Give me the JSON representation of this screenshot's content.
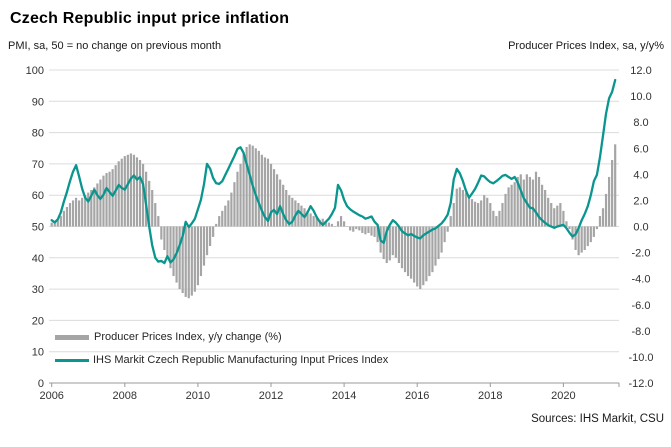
{
  "header": {
    "title": "Czech Republic input price inflation",
    "subtitle_left": "PMI, sa, 50 = no change on previous month",
    "subtitle_right": "Producer Prices Index, sa, y/y%"
  },
  "footer": {
    "sources": "Sources: IHS Markit, CSU"
  },
  "colors": {
    "bar": "#a5a5a5",
    "line": "#0a968e",
    "gridline": "#dcdcdc",
    "axis": "#999999",
    "tick_text": "#333333"
  },
  "chart_data": {
    "type": "combo",
    "title": "Czech Republic input price inflation",
    "x_start_year": 2006,
    "x_frequency": "monthly",
    "x_tick_labels": [
      "2006",
      "2008",
      "2010",
      "2012",
      "2014",
      "2016",
      "2018",
      "2020"
    ],
    "x_tick_years": [
      2006,
      2008,
      2010,
      2012,
      2014,
      2016,
      2018,
      2020
    ],
    "left_axis": {
      "title": "PMI, sa, 50 = no change on previous month",
      "min": 0,
      "max": 100,
      "step": 10,
      "labels": [
        "100",
        "90",
        "80",
        "70",
        "60",
        "50",
        "40",
        "30",
        "20",
        "10",
        "0"
      ]
    },
    "right_axis": {
      "title": "Producer Prices Index, sa, y/y%",
      "min": -12,
      "max": 12,
      "step": 2,
      "labels": [
        "12.0",
        "10.0",
        "8.0",
        "6.0",
        "4.0",
        "2.0",
        "0.0",
        "-2.0",
        "-4.0",
        "-6.0",
        "-8.0",
        "-10.0",
        "-12.0"
      ]
    },
    "grid": "horizontal",
    "legend_position": "inside-bottom-left",
    "series": [
      {
        "name": "Producer Prices Index, y/y change (%)",
        "type": "bar",
        "axis": "right",
        "color": "#a5a5a5",
        "values": [
          0.3,
          0.4,
          0.5,
          0.8,
          1.2,
          1.5,
          1.8,
          2.0,
          2.2,
          2.0,
          2.2,
          2.4,
          2.6,
          2.8,
          3.0,
          3.3,
          3.6,
          3.9,
          4.1,
          4.2,
          4.4,
          4.7,
          5.0,
          5.2,
          5.4,
          5.5,
          5.6,
          5.5,
          5.3,
          5.1,
          4.8,
          4.2,
          3.5,
          2.8,
          1.8,
          0.8,
          -1.0,
          -1.8,
          -2.5,
          -3.2,
          -3.8,
          -4.3,
          -4.8,
          -5.1,
          -5.4,
          -5.5,
          -5.3,
          -5.0,
          -4.5,
          -3.8,
          -3.0,
          -2.2,
          -1.5,
          -0.8,
          0.2,
          0.8,
          1.2,
          1.6,
          2.0,
          2.6,
          3.4,
          4.2,
          4.8,
          5.6,
          6.1,
          6.3,
          6.2,
          6.0,
          5.8,
          5.5,
          5.3,
          5.2,
          4.8,
          4.4,
          4.0,
          3.6,
          3.2,
          2.8,
          2.4,
          2.2,
          2.0,
          1.8,
          1.6,
          1.4,
          1.2,
          1.0,
          0.8,
          0.7,
          0.5,
          0.6,
          0.4,
          0.3,
          0.2,
          0.0,
          0.4,
          0.8,
          0.4,
          0.0,
          -0.3,
          -0.4,
          -0.2,
          -0.3,
          -0.5,
          -0.6,
          -0.5,
          -0.7,
          -0.8,
          -1.2,
          -2.0,
          -2.5,
          -2.8,
          -2.6,
          -2.2,
          -2.4,
          -2.8,
          -3.2,
          -3.5,
          -3.8,
          -4.0,
          -4.3,
          -4.6,
          -4.8,
          -4.5,
          -4.2,
          -3.8,
          -3.5,
          -3.0,
          -2.5,
          -2.0,
          -1.2,
          -0.4,
          0.8,
          1.8,
          2.9,
          3.0,
          2.8,
          2.6,
          2.3,
          2.1,
          1.9,
          1.8,
          2.0,
          2.4,
          2.2,
          1.8,
          1.2,
          0.8,
          1.2,
          1.8,
          2.5,
          3.0,
          3.2,
          3.4,
          3.8,
          4.0,
          3.6,
          4.0,
          3.8,
          3.6,
          4.2,
          3.8,
          3.2,
          2.8,
          2.2,
          1.8,
          1.4,
          1.6,
          1.8,
          1.2,
          0.4,
          -0.2,
          -1.0,
          -1.8,
          -2.2,
          -2.0,
          -1.8,
          -1.5,
          -1.2,
          -0.8,
          -0.2,
          0.8,
          1.4,
          2.5,
          3.8,
          5.1,
          6.3
        ]
      },
      {
        "name": "IHS Markit Czech Republic Manufacturing Input Prices Index",
        "type": "line",
        "axis": "left",
        "color": "#0a968e",
        "values": [
          52.0,
          51.3,
          52.3,
          54.5,
          58.0,
          61.0,
          64.5,
          67.5,
          69.6,
          66.0,
          62.0,
          59.2,
          58.0,
          59.8,
          61.8,
          60.0,
          58.8,
          60.2,
          62.3,
          61.0,
          59.8,
          61.5,
          63.3,
          62.3,
          61.8,
          63.5,
          65.3,
          66.3,
          65.0,
          65.8,
          63.5,
          57.0,
          50.0,
          44.0,
          40.0,
          38.8,
          39.0,
          38.3,
          40.5,
          38.5,
          39.5,
          41.5,
          44.0,
          47.0,
          51.5,
          49.8,
          51.0,
          52.5,
          55.5,
          58.5,
          63.5,
          70.0,
          68.5,
          65.5,
          63.8,
          63.6,
          64.5,
          66.5,
          68.5,
          70.5,
          72.5,
          74.8,
          75.3,
          73.5,
          70.0,
          66.5,
          63.0,
          60.0,
          57.5,
          55.0,
          53.0,
          51.8,
          54.5,
          55.3,
          54.0,
          56.5,
          54.0,
          52.0,
          50.8,
          51.5,
          53.5,
          55.0,
          54.0,
          53.0,
          54.5,
          56.5,
          55.0,
          53.0,
          51.5,
          50.5,
          51.5,
          52.5,
          54.0,
          56.0,
          63.3,
          61.5,
          58.5,
          56.5,
          55.5,
          54.8,
          54.2,
          53.6,
          53.2,
          52.5,
          52.8,
          53.2,
          51.5,
          50.5,
          45.5,
          44.8,
          48.5,
          50.5,
          52.0,
          51.2,
          50.0,
          48.5,
          47.8,
          47.2,
          47.6,
          47.0,
          46.5,
          46.2,
          47.2,
          47.8,
          48.4,
          49.0,
          49.4,
          50.2,
          51.0,
          52.2,
          53.8,
          57.5,
          65.0,
          68.4,
          67.0,
          64.5,
          61.5,
          59.2,
          60.5,
          62.0,
          64.0,
          66.3,
          66.0,
          65.0,
          64.2,
          63.8,
          64.5,
          65.3,
          66.2,
          66.5,
          65.8,
          65.2,
          65.8,
          64.0,
          61.5,
          59.0,
          57.5,
          56.0,
          55.8,
          54.5,
          53.0,
          52.0,
          51.2,
          50.4,
          50.0,
          49.6,
          50.0,
          50.3,
          50.5,
          49.5,
          48.0,
          46.8,
          47.5,
          49.5,
          52.0,
          54.0,
          56.5,
          60.0,
          64.5,
          66.5,
          72.0,
          79.0,
          86.0,
          91.0,
          93.0,
          96.8
        ]
      }
    ]
  }
}
